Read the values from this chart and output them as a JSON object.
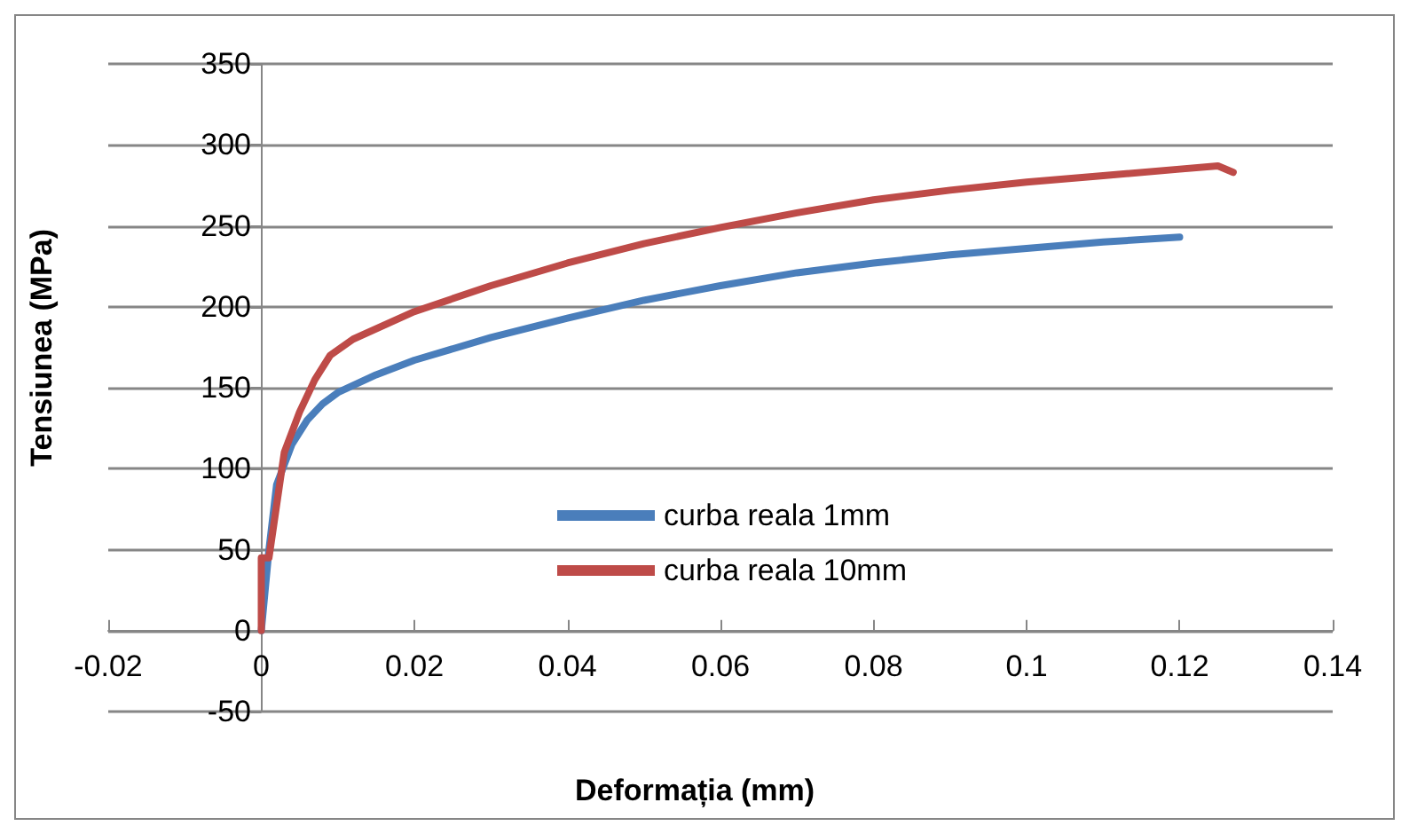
{
  "chart_data": {
    "type": "line",
    "xlabel": "Deformația (mm)",
    "ylabel": "Tensiunea (MPa)",
    "xlim": [
      -0.02,
      0.14
    ],
    "xticks": [
      -0.02,
      0,
      0.02,
      0.04,
      0.06,
      0.08,
      0.1,
      0.12,
      0.14
    ],
    "ylim": [
      -50,
      350
    ],
    "yticks": [
      -50,
      0,
      50,
      100,
      150,
      200,
      250,
      300,
      350
    ],
    "grid": "y",
    "legend": "left",
    "marker": "none",
    "line_style": "solid",
    "series": [
      {
        "name": "curba reala 1mm",
        "color": "#4a7ebb",
        "x": [
          0,
          0.001,
          0.002,
          0.004,
          0.006,
          0.008,
          0.01,
          0.015,
          0.02,
          0.03,
          0.04,
          0.05,
          0.06,
          0.07,
          0.08,
          0.09,
          0.1,
          0.11,
          0.12
        ],
        "values": [
          0,
          50,
          90,
          115,
          130,
          140,
          147,
          158,
          167,
          181,
          193,
          204,
          213,
          221,
          227,
          232,
          236,
          240,
          243
        ]
      },
      {
        "name": "curba reala 10mm",
        "color": "#be4b48",
        "x": [
          0,
          0,
          0.001,
          0.003,
          0.005,
          0.007,
          0.009,
          0.012,
          0.02,
          0.03,
          0.04,
          0.05,
          0.06,
          0.07,
          0.08,
          0.09,
          0.1,
          0.11,
          0.12,
          0.125,
          0.127
        ],
        "values": [
          0,
          45,
          45,
          110,
          135,
          155,
          170,
          180,
          197,
          213,
          227,
          239,
          249,
          258,
          266,
          272,
          277,
          281,
          285,
          287,
          283
        ]
      }
    ]
  }
}
